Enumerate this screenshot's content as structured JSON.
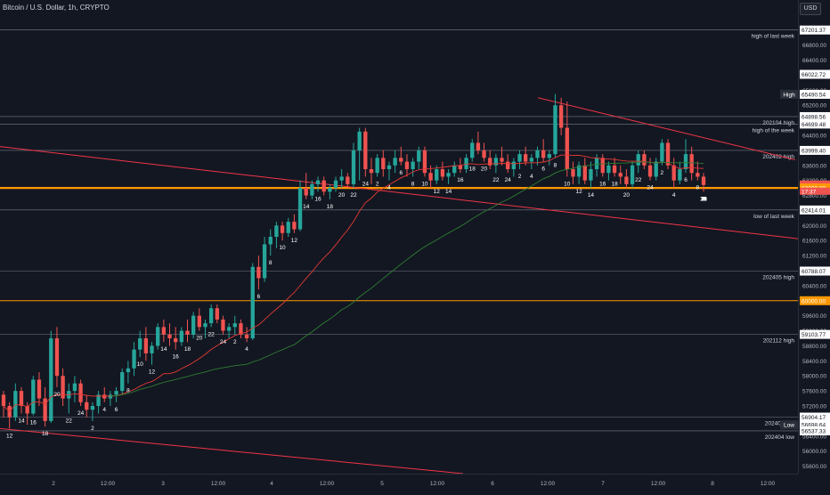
{
  "header": {
    "title": "Bitcoin / U.S. Dollar, 1h, CRYPTO",
    "currency": "USD"
  },
  "colors": {
    "up": "#26a69a",
    "down": "#ef5350",
    "bg": "#131722",
    "grid": "#787b86",
    "orange": "#ff9800",
    "ma_red": "#e53935",
    "ma_green": "#2e7d32",
    "trend": "#f23645"
  },
  "chart_data": {
    "type": "candlestick",
    "title": "Bitcoin / U.S. Dollar, 1h, CRYPTO",
    "ylim": [
      55400,
      68000
    ],
    "grid": false,
    "x_ticks": [
      "2",
      "12:00",
      "3",
      "12:00",
      "4",
      "12:00",
      "5",
      "12:00",
      "6",
      "12:00",
      "7",
      "12:00",
      "8",
      "12:00"
    ],
    "y_ticks": [
      55600,
      56000,
      56400,
      57200,
      57600,
      58000,
      58400,
      58800,
      59200,
      59600,
      60400,
      61200,
      61600,
      62000,
      62800,
      63200,
      63600,
      64400,
      64800,
      65200,
      65600,
      66000,
      66400,
      66800
    ],
    "level_tags": [
      {
        "price": 67201.37,
        "label": "67201.37",
        "style": "white"
      },
      {
        "price": 66022.72,
        "label": "66022.72",
        "style": "white"
      },
      {
        "price": 65490.54,
        "label": "65490.54",
        "style": "white"
      },
      {
        "price": 64898.56,
        "label": "64898.56",
        "style": "white"
      },
      {
        "price": 64699.48,
        "label": "64699.48",
        "style": "white"
      },
      {
        "price": 63999.4,
        "label": "63999.40",
        "style": "white"
      },
      {
        "price": 63078.82,
        "label": "63078.82",
        "style": "red"
      },
      {
        "price": 63000.0,
        "label": "63000.00",
        "style": "orange"
      },
      {
        "price": 62414.01,
        "label": "62414.01",
        "style": "white"
      },
      {
        "price": 60788.07,
        "label": "60788.07",
        "style": "white"
      },
      {
        "price": 60000.0,
        "label": "60000.00",
        "style": "orange"
      },
      {
        "price": 59103.77,
        "label": "59103.77",
        "style": "white"
      },
      {
        "price": 56904.17,
        "label": "56904.17",
        "style": "white"
      },
      {
        "price": 56698.64,
        "label": "56698.64",
        "style": "white"
      },
      {
        "price": 56537.33,
        "label": "56537.33",
        "style": "white"
      }
    ],
    "countdown": "17:37",
    "axis_labels": [
      {
        "price": 65490.54,
        "text": "High"
      },
      {
        "price": 56698.64,
        "text": "Low"
      }
    ],
    "levels": [
      {
        "price": 67201.37,
        "label": "high of last week"
      },
      {
        "price": 64898.56,
        "label": "202104 high"
      },
      {
        "price": 64699.48,
        "label": "high of the week"
      },
      {
        "price": 63999.4,
        "label": "202402 high"
      },
      {
        "price": 62414.01,
        "label": "low of last week"
      },
      {
        "price": 60788.07,
        "label": "202405 high"
      },
      {
        "price": 59103.77,
        "label": "202112 high"
      },
      {
        "price": 56904.17,
        "label": "202405 low"
      },
      {
        "price": 56537.33,
        "label": "202404 low"
      }
    ],
    "orange_levels": [
      63000,
      60000
    ],
    "current_price": 63078.82,
    "hour_labels": [
      "12",
      "14",
      "16",
      "18",
      "20",
      "22",
      "24",
      "2",
      "4",
      "6",
      "8",
      "10",
      "12",
      "14",
      "16",
      "18",
      "20",
      "22",
      "24",
      "2",
      "4",
      "6",
      "8",
      "10",
      "12",
      "14",
      "16",
      "18",
      "20",
      "22",
      "24",
      "2",
      "4",
      "6",
      "8",
      "10",
      "12",
      "14",
      "16",
      "18",
      "20",
      "22",
      "24",
      "2",
      "4",
      "6",
      "8",
      "10",
      "12",
      "14",
      "16",
      "18",
      "20",
      "22",
      "24",
      "2",
      "4",
      "6",
      "8",
      "10",
      "12",
      "14",
      "16",
      "18",
      "20",
      "22",
      "24",
      "2",
      "4",
      "6",
      "8",
      "10",
      "12",
      "14",
      "16",
      "18",
      "20"
    ],
    "candles": [
      [
        57500,
        57600,
        56900,
        57200
      ],
      [
        57200,
        57300,
        56600,
        56900
      ],
      [
        56900,
        57800,
        56800,
        57600
      ],
      [
        57600,
        57700,
        57000,
        57200
      ],
      [
        57200,
        57300,
        56700,
        57000
      ],
      [
        57000,
        58000,
        56950,
        57900
      ],
      [
        57900,
        58100,
        57200,
        57400
      ],
      [
        57400,
        57700,
        56650,
        56800
      ],
      [
        56800,
        59200,
        56750,
        59000
      ],
      [
        59000,
        59300,
        57700,
        58000
      ],
      [
        58000,
        58200,
        57200,
        57400
      ],
      [
        57400,
        57800,
        57000,
        57600
      ],
      [
        57600,
        58000,
        57300,
        57800
      ],
      [
        57800,
        57900,
        57200,
        57300
      ],
      [
        57300,
        57500,
        56900,
        57100
      ],
      [
        57100,
        57300,
        56800,
        57200
      ],
      [
        57200,
        57600,
        57000,
        57500
      ],
      [
        57500,
        57700,
        57300,
        57400
      ],
      [
        57400,
        57600,
        57200,
        57500
      ],
      [
        57500,
        57700,
        57300,
        57600
      ],
      [
        57600,
        58200,
        57500,
        58100
      ],
      [
        58100,
        58400,
        57800,
        58200
      ],
      [
        58200,
        58900,
        58000,
        58700
      ],
      [
        58700,
        59200,
        58500,
        59000
      ],
      [
        59000,
        59300,
        58400,
        58600
      ],
      [
        58600,
        58900,
        58300,
        58800
      ],
      [
        58800,
        59400,
        58700,
        59300
      ],
      [
        59300,
        59500,
        58900,
        59100
      ],
      [
        59100,
        59400,
        58800,
        59000
      ],
      [
        59000,
        59300,
        58700,
        58900
      ],
      [
        58900,
        59300,
        58800,
        59200
      ],
      [
        59200,
        59500,
        58900,
        59100
      ],
      [
        59100,
        59700,
        59000,
        59600
      ],
      [
        59600,
        59800,
        59200,
        59300
      ],
      [
        59300,
        59500,
        59000,
        59400
      ],
      [
        59400,
        59900,
        59300,
        59800
      ],
      [
        59800,
        59900,
        59400,
        59500
      ],
      [
        59500,
        59600,
        59100,
        59200
      ],
      [
        59200,
        59400,
        59000,
        59300
      ],
      [
        59300,
        59600,
        59100,
        59400
      ],
      [
        59400,
        59500,
        59000,
        59100
      ],
      [
        59100,
        59300,
        58900,
        59000
      ],
      [
        59000,
        61000,
        58950,
        60900
      ],
      [
        60900,
        61200,
        60300,
        60600
      ],
      [
        60600,
        61700,
        60500,
        61500
      ],
      [
        61500,
        61900,
        61200,
        61700
      ],
      [
        61700,
        62100,
        61400,
        62000
      ],
      [
        62000,
        62100,
        61600,
        61800
      ],
      [
        61800,
        62200,
        61700,
        62100
      ],
      [
        62100,
        62300,
        61800,
        61900
      ],
      [
        61900,
        63200,
        61850,
        63000
      ],
      [
        63000,
        63400,
        62700,
        62800
      ],
      [
        62800,
        63200,
        62700,
        63100
      ],
      [
        63100,
        63300,
        62900,
        63200
      ],
      [
        63200,
        63300,
        62800,
        62900
      ],
      [
        62900,
        63100,
        62700,
        63000
      ],
      [
        63000,
        63300,
        62900,
        63200
      ],
      [
        63200,
        63500,
        63000,
        63300
      ],
      [
        63300,
        63400,
        63000,
        63100
      ],
      [
        63100,
        64200,
        63000,
        64000
      ],
      [
        64000,
        64600,
        63200,
        64500
      ],
      [
        64500,
        64600,
        63300,
        63500
      ],
      [
        63500,
        63800,
        63100,
        63400
      ],
      [
        63400,
        63900,
        63300,
        63800
      ],
      [
        63800,
        64000,
        63300,
        63500
      ],
      [
        63500,
        63700,
        63200,
        63600
      ],
      [
        63600,
        64000,
        63400,
        63800
      ],
      [
        63800,
        64100,
        63600,
        63700
      ],
      [
        63700,
        63900,
        63300,
        63500
      ],
      [
        63500,
        63800,
        63300,
        63700
      ],
      [
        63700,
        64100,
        63500,
        64000
      ],
      [
        64000,
        64100,
        63300,
        63400
      ],
      [
        63400,
        63600,
        63000,
        63200
      ],
      [
        63200,
        63600,
        63100,
        63500
      ],
      [
        63500,
        63700,
        63200,
        63300
      ],
      [
        63300,
        63500,
        63100,
        63400
      ],
      [
        63400,
        63700,
        63300,
        63600
      ],
      [
        63600,
        63800,
        63400,
        63500
      ],
      [
        63500,
        63900,
        63400,
        63800
      ],
      [
        63800,
        64300,
        63700,
        64200
      ],
      [
        64200,
        64500,
        63900,
        64000
      ],
      [
        64000,
        64200,
        63700,
        63800
      ],
      [
        63800,
        64000,
        63500,
        63600
      ],
      [
        63600,
        63900,
        63400,
        63800
      ],
      [
        63800,
        64100,
        63600,
        63700
      ],
      [
        63700,
        63900,
        63400,
        63500
      ],
      [
        63500,
        63800,
        63300,
        63700
      ],
      [
        63700,
        64000,
        63500,
        63900
      ],
      [
        63900,
        64100,
        63600,
        63700
      ],
      [
        63700,
        63900,
        63500,
        63800
      ],
      [
        63800,
        64100,
        63600,
        64000
      ],
      [
        64000,
        64300,
        63700,
        63800
      ],
      [
        63800,
        64000,
        63600,
        63900
      ],
      [
        63900,
        65500,
        63800,
        65200
      ],
      [
        65200,
        65400,
        64400,
        64600
      ],
      [
        64600,
        65300,
        63300,
        63500
      ],
      [
        63500,
        63700,
        63100,
        63300
      ],
      [
        63300,
        63700,
        63100,
        63600
      ],
      [
        63600,
        63800,
        63100,
        63200
      ],
      [
        63200,
        63700,
        63000,
        63500
      ],
      [
        63500,
        63900,
        63300,
        63800
      ],
      [
        63800,
        63900,
        63300,
        63400
      ],
      [
        63400,
        63700,
        63200,
        63600
      ],
      [
        63600,
        63800,
        63300,
        63400
      ],
      [
        63400,
        63600,
        63100,
        63300
      ],
      [
        63300,
        63500,
        63000,
        63100
      ],
      [
        63100,
        63700,
        63000,
        63600
      ],
      [
        63600,
        64000,
        63400,
        63900
      ],
      [
        63900,
        64000,
        63500,
        63600
      ],
      [
        63600,
        63800,
        63200,
        63300
      ],
      [
        63300,
        63800,
        63200,
        63700
      ],
      [
        63700,
        64300,
        63600,
        64200
      ],
      [
        64200,
        64300,
        63500,
        63600
      ],
      [
        63600,
        63800,
        63000,
        63200
      ],
      [
        63200,
        63700,
        63100,
        63500
      ],
      [
        63500,
        64300,
        63400,
        63900
      ],
      [
        63900,
        64100,
        63200,
        63400
      ],
      [
        63400,
        63700,
        63200,
        63300
      ],
      [
        63300,
        63400,
        62900,
        63078.82
      ]
    ]
  }
}
